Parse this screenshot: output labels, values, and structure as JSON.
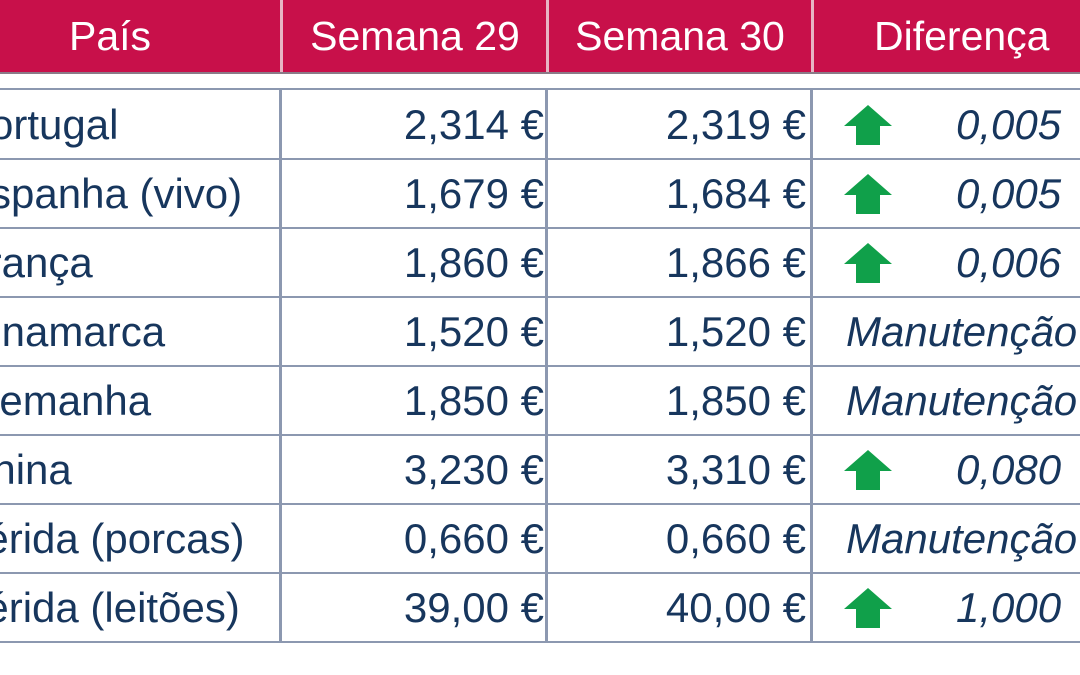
{
  "table": {
    "headers": {
      "country": "País",
      "week29": "Semana 29",
      "week30": "Semana 30",
      "difference": "Diferença"
    },
    "rows": [
      {
        "country": "Portugal",
        "week29": "2,314 €",
        "week30": "2,319 €",
        "trend": "up",
        "difference": "0,005"
      },
      {
        "country": "Espanha (vivo)",
        "week29": "1,679 €",
        "week30": "1,684 €",
        "trend": "up",
        "difference": "0,005"
      },
      {
        "country": "França",
        "week29": "1,860 €",
        "week30": "1,866 €",
        "trend": "up",
        "difference": "0,006"
      },
      {
        "country": "Dinamarca",
        "week29": "1,520 €",
        "week30": "1,520 €",
        "trend": "none",
        "difference": "Manutenção"
      },
      {
        "country": "Alemanha",
        "week29": "1,850 €",
        "week30": "1,850 €",
        "trend": "none",
        "difference": "Manutenção"
      },
      {
        "country": "China",
        "week29": "3,230 €",
        "week30": "3,310 €",
        "trend": "up",
        "difference": "0,080"
      },
      {
        "country": "Lérida (porcas)",
        "week29": "0,660 €",
        "week30": "0,660 €",
        "trend": "none",
        "difference": "Manutenção"
      },
      {
        "country": "Lérida (leitões)",
        "week29": "39,00 €",
        "week30": "40,00 €",
        "trend": "up",
        "difference": "1,000"
      }
    ]
  },
  "colors": {
    "header_bg": "#c8104a",
    "text": "#17365d",
    "arrow_up": "#10a04a",
    "grid": "#8c98b0"
  },
  "icons": {
    "up": "arrow-up-icon"
  }
}
